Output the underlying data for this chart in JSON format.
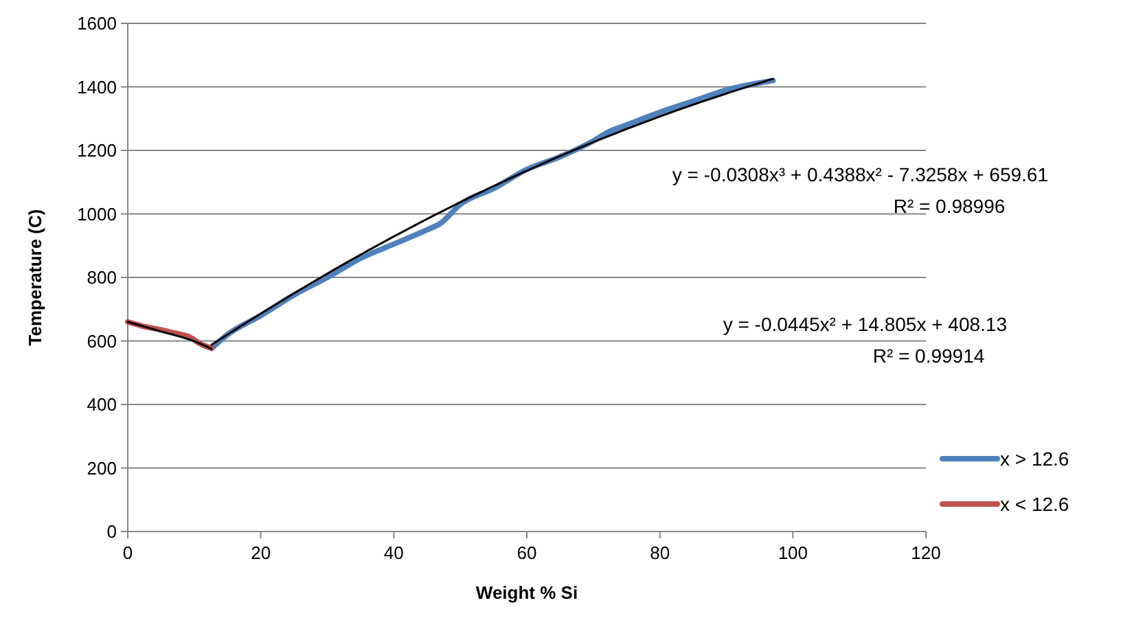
{
  "chart_data": {
    "type": "line",
    "xlabel": "Weight % Si",
    "ylabel": "Temperature (C)",
    "xlim": [
      0,
      120
    ],
    "xticks": [
      0,
      20,
      40,
      60,
      80,
      100,
      120
    ],
    "ylim": [
      0,
      1600
    ],
    "yticks": [
      0,
      200,
      400,
      600,
      800,
      1000,
      1200,
      1400,
      1600
    ],
    "grid": "y",
    "legend": "right",
    "marker": "none",
    "line_style": "solid",
    "series": [
      {
        "name": "x > 12.6",
        "color": "#4f81bd",
        "x": [
          12.6,
          15,
          20,
          25,
          30,
          35,
          40,
          45,
          47,
          50,
          55,
          60,
          65,
          70,
          72,
          75,
          80,
          85,
          90,
          97
        ],
        "values": [
          577,
          620,
          680,
          745,
          800,
          860,
          905,
          950,
          970,
          1030,
          1080,
          1140,
          1180,
          1230,
          1255,
          1280,
          1320,
          1355,
          1390,
          1420
        ]
      },
      {
        "name": "x < 12.6",
        "color": "#c0504d",
        "x": [
          0,
          2,
          5,
          8,
          9,
          11,
          12.6
        ],
        "values": [
          660,
          648,
          635,
          620,
          615,
          590,
          577
        ]
      },
      {
        "color": "#000000",
        "x": [
          12.6,
          20,
          30,
          40,
          50,
          60,
          70,
          80,
          90,
          97
        ],
        "values": [
          588,
          686,
          812,
          929,
          1037,
          1136,
          1226,
          1307,
          1379,
          1425
        ]
      },
      {
        "color": "#000000",
        "x": [
          0,
          5,
          10,
          12.6
        ],
        "values": [
          660,
          630,
          599,
          575
        ]
      }
    ],
    "annotations": [
      "y = -0.0308x³ + 0.4388x² - 7.3258x + 659.61",
      "R² = 0.98996",
      "y = -0.0445x² + 14.805x + 408.13",
      "R² = 0.99914"
    ]
  }
}
